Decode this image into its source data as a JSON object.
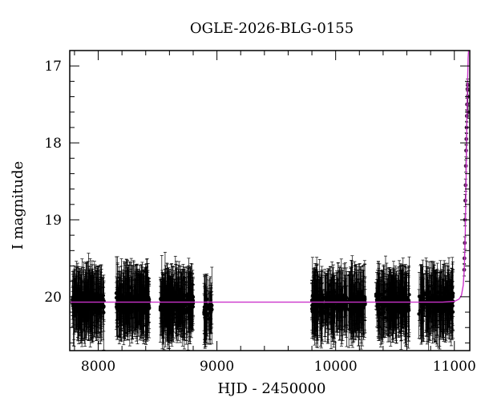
{
  "chart_data": {
    "type": "scatter",
    "title": "OGLE-2026-BLG-0155",
    "xlabel": "HJD - 2450000",
    "ylabel": "I magnitude",
    "xlim": [
      7760,
      11130
    ],
    "ylim": [
      20.7,
      16.8
    ],
    "y_inverted": true,
    "x_ticks": [
      8000,
      9000,
      10000,
      11000
    ],
    "y_ticks": [
      17,
      18,
      19,
      20
    ],
    "grid": false,
    "legend": "none",
    "colors": {
      "data": "#000000",
      "model": "#cc33cc",
      "axis": "#000000"
    },
    "baseline_mag": 20.07,
    "series": [
      {
        "kind": "points_with_errorbars",
        "seasons": [
          {
            "x_start": 7780,
            "x_end": 8050,
            "mag_center": 20.08,
            "mag_scatter": 0.3,
            "n": 230
          },
          {
            "x_start": 8150,
            "x_end": 8430,
            "mag_center": 20.08,
            "mag_scatter": 0.28,
            "n": 240
          },
          {
            "x_start": 8520,
            "x_end": 8800,
            "mag_center": 20.08,
            "mag_scatter": 0.28,
            "n": 250
          },
          {
            "x_start": 8890,
            "x_end": 8960,
            "mag_center": 20.18,
            "mag_scatter": 0.25,
            "n": 40
          },
          {
            "x_start": 9800,
            "x_end": 9880,
            "mag_center": 20.08,
            "mag_scatter": 0.28,
            "n": 70
          },
          {
            "x_start": 9880,
            "x_end": 10250,
            "mag_center": 20.08,
            "mag_scatter": 0.28,
            "n": 230
          },
          {
            "x_start": 10340,
            "x_end": 10620,
            "mag_center": 20.08,
            "mag_scatter": 0.28,
            "n": 220
          },
          {
            "x_start": 10700,
            "x_end": 10990,
            "mag_center": 20.08,
            "mag_scatter": 0.28,
            "n": 220
          }
        ],
        "rise_points": [
          {
            "x": 11083,
            "y": 19.65
          },
          {
            "x": 11085,
            "y": 19.5
          },
          {
            "x": 11088,
            "y": 19.3
          },
          {
            "x": 11090,
            "y": 19.0
          },
          {
            "x": 11092,
            "y": 18.75
          },
          {
            "x": 11095,
            "y": 18.55
          },
          {
            "x": 11097,
            "y": 18.3
          },
          {
            "x": 11099,
            "y": 18.1
          },
          {
            "x": 11101,
            "y": 17.95
          },
          {
            "x": 11103,
            "y": 17.8
          },
          {
            "x": 11105,
            "y": 17.65
          },
          {
            "x": 11107,
            "y": 17.5
          },
          {
            "x": 11110,
            "y": 17.3
          },
          {
            "x": 11112,
            "y": 17.25
          },
          {
            "x": 11114,
            "y": 17.4
          },
          {
            "x": 11116,
            "y": 17.6
          }
        ]
      },
      {
        "kind": "model_curve",
        "curve": [
          {
            "x": 7760,
            "y": 20.07
          },
          {
            "x": 10900,
            "y": 20.07
          },
          {
            "x": 11000,
            "y": 20.06
          },
          {
            "x": 11040,
            "y": 20.03
          },
          {
            "x": 11060,
            "y": 19.98
          },
          {
            "x": 11075,
            "y": 19.85
          },
          {
            "x": 11085,
            "y": 19.6
          },
          {
            "x": 11092,
            "y": 19.2
          },
          {
            "x": 11098,
            "y": 18.6
          },
          {
            "x": 11104,
            "y": 17.9
          },
          {
            "x": 11110,
            "y": 17.3
          },
          {
            "x": 11116,
            "y": 16.9
          },
          {
            "x": 11120,
            "y": 16.8
          }
        ]
      }
    ]
  }
}
